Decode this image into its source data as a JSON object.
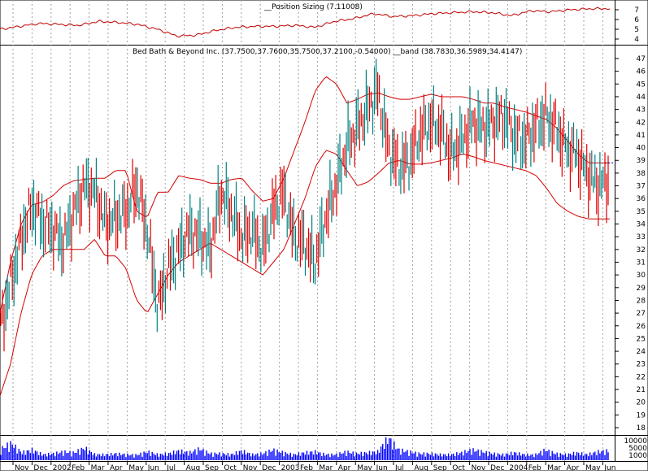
{
  "panels": {
    "top_label": "__Position Sizing (7.11008)",
    "main_label": "Bed Bath & Beyond Inc. (37.7500,37.7600,35.7500,37.2100,-0.54000) __band (38.7830,36.5989,34.4147)"
  },
  "chart_data": [
    {
      "type": "line",
      "title": "__Position Sizing (7.11008)",
      "yticks": [
        "4",
        "5",
        "6",
        "7"
      ],
      "ylim": [
        3.6,
        7.8
      ],
      "series": [
        {
          "name": "__Position Sizing",
          "x": [
            "Nov",
            "Dec",
            "2002",
            "Feb",
            "Mar",
            "Apr",
            "May",
            "Jun",
            "Jul",
            "Aug",
            "Sep",
            "Oct",
            "Nov",
            "Dec",
            "2003",
            "Feb",
            "Mar",
            "Apr",
            "May",
            "Jun",
            "Jul",
            "Aug",
            "Sep",
            "Oct",
            "Nov",
            "Dec",
            "2004",
            "Feb",
            "Mar",
            "Apr",
            "May",
            "Jun"
          ],
          "values": [
            5.0,
            5.3,
            5.6,
            5.5,
            5.4,
            5.8,
            5.7,
            5.5,
            5.0,
            4.3,
            4.4,
            4.9,
            5.2,
            5.3,
            5.3,
            5.4,
            5.2,
            5.8,
            6.1,
            6.6,
            6.3,
            6.4,
            6.6,
            6.7,
            6.8,
            6.7,
            6.4,
            6.9,
            6.8,
            7.0,
            7.1,
            7.11
          ]
        }
      ]
    },
    {
      "type": "line",
      "title": "Bed Bath & Beyond Inc. (37.7500,37.7600,35.7500,37.2100,-0.54000) __band (38.7830,36.5989,34.4147)",
      "ylim": [
        17.5,
        47.5
      ],
      "yticks": [
        "18",
        "19",
        "20",
        "21",
        "22",
        "23",
        "24",
        "25",
        "26",
        "27",
        "28",
        "29",
        "30",
        "31",
        "32",
        "33",
        "34",
        "35",
        "36",
        "37",
        "38",
        "39",
        "40",
        "41",
        "42",
        "43",
        "44",
        "45",
        "46",
        "47"
      ],
      "xticks": [
        "Nov",
        "Dec",
        "2002",
        "Feb",
        "Mar",
        "Apr",
        "May",
        "Jun",
        "Jul",
        "Aug",
        "Sep",
        "Oct",
        "Nov",
        "Dec",
        "2003",
        "Feb",
        "Mar",
        "Apr",
        "May",
        "Jun",
        "Jul",
        "Aug",
        "Sep",
        "Oct",
        "Nov",
        "Dec",
        "2004",
        "Feb",
        "Mar",
        "Apr",
        "May",
        "Jun"
      ],
      "last_close": 37.21,
      "series": [
        {
          "name": "Bed Bath & Beyond Inc.",
          "values": [
            26,
            29.5,
            33,
            35.5,
            34,
            33.5,
            32.5,
            35,
            37,
            36.5,
            34,
            34.5,
            35,
            37,
            33.5,
            27.5,
            30.5,
            32,
            33.5,
            33,
            32,
            36.5,
            35,
            33,
            33.5,
            32,
            35,
            36.5,
            33,
            32.5,
            31,
            34.5,
            37,
            40,
            41.5,
            43,
            44.5,
            40,
            38.5,
            39,
            41,
            42,
            41.5,
            39.5,
            40.5,
            42,
            41.5,
            42,
            42.5,
            41,
            40.5,
            41.5,
            42.5,
            41.5,
            40,
            39.5,
            38,
            37,
            37.5
          ]
        },
        {
          "name": "__band upper",
          "values": [
            27,
            31,
            34,
            35.5,
            35.7,
            36.2,
            37,
            37.4,
            37.5,
            37.6,
            37.6,
            38.2,
            38.2,
            35,
            34.5,
            36.5,
            36.5,
            37.8,
            37.6,
            37.5,
            37.2,
            37.2,
            37.5,
            37.6,
            36.6,
            35.8,
            36,
            37.6,
            39.8,
            42,
            44.5,
            45.6,
            45,
            43.5,
            43.8,
            44.2,
            44.3,
            44,
            43.8,
            43.8,
            44,
            44.2,
            44,
            44,
            44,
            43.8,
            43.5,
            43.5,
            43.2,
            43,
            42.8,
            42.5,
            42.2,
            41.5,
            40.5,
            39.5,
            38.8,
            38.8,
            38.8
          ]
        },
        {
          "name": "__band middle",
          "values": [
            24.6,
            27.8,
            30.8,
            32.6,
            33,
            33.5,
            34.5,
            35,
            35.5,
            35.6,
            35.4,
            35.7,
            35.4,
            32.2,
            30.2,
            31,
            32.5,
            33.6,
            34,
            34.5,
            34.6,
            34,
            34.2,
            34.3,
            33.4,
            32.8,
            33.2,
            34,
            36.5,
            39,
            41.5,
            42.7,
            42.4,
            40.8,
            40.2,
            40.6,
            41,
            41.4,
            41.3,
            41.2,
            41.4,
            41.5,
            41.5,
            41.6,
            41.8,
            41.5,
            41.2,
            41,
            40.8,
            40.7,
            40.5,
            40.2,
            39.5,
            38.3,
            37.5,
            36.8,
            36.5,
            36.6,
            36.6
          ]
        },
        {
          "name": "__band lower",
          "values": [
            20.5,
            23,
            27,
            30,
            31.5,
            32,
            32,
            32,
            32,
            32.8,
            31.5,
            31.5,
            30.5,
            28,
            27,
            28.5,
            30,
            31,
            31.5,
            32,
            32.5,
            32,
            31.5,
            31,
            30.5,
            30,
            31,
            32,
            34,
            36,
            38.5,
            39.8,
            39.5,
            38.2,
            37,
            37.3,
            38,
            38.8,
            39,
            38.7,
            38.7,
            38.8,
            39,
            39.2,
            39.5,
            39.3,
            39,
            38.8,
            38.6,
            38.4,
            38.2,
            37.8,
            36.8,
            35.6,
            35,
            34.6,
            34.4,
            34.4,
            34.4
          ]
        }
      ]
    },
    {
      "type": "bar",
      "yticks": [
        "10000",
        "5000",
        "1000"
      ],
      "series": [
        {
          "name": "Volume",
          "values": [
            6000,
            9000,
            4000,
            5500,
            3000,
            3500,
            4500,
            4000,
            6500,
            3000,
            3000,
            3500,
            3000,
            2800,
            4500,
            3000,
            3500,
            5000,
            4000,
            6000,
            3500,
            3500,
            3000,
            5000,
            3000,
            3500,
            5500,
            4000,
            3000,
            4000,
            4500,
            3000,
            3000,
            4500,
            3500,
            4000,
            4500,
            12000,
            5500,
            4500,
            3500,
            3500,
            3000,
            3000,
            4000,
            5500,
            4500,
            3500,
            3000,
            4000,
            3000,
            2800,
            5500,
            3500,
            3000,
            4000,
            3000,
            4500,
            5000
          ]
        }
      ]
    }
  ]
}
